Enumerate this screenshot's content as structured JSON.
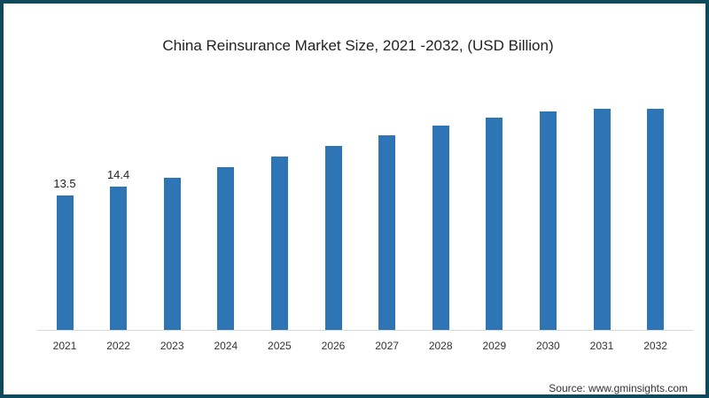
{
  "chart_data": {
    "type": "bar",
    "title": "China Reinsurance Market Size, 2021 -2032, (USD Billion)",
    "xlabel": "",
    "ylabel": "",
    "categories": [
      "2021",
      "2022",
      "2023",
      "2024",
      "2025",
      "2026",
      "2027",
      "2028",
      "2029",
      "2030",
      "2031",
      "2032"
    ],
    "values": [
      13.5,
      14.4,
      15.3,
      16.3,
      17.4,
      18.5,
      19.5,
      20.5,
      21.3,
      21.9,
      22.2,
      22.2
    ],
    "data_labels": [
      "13.5",
      "14.4",
      "",
      "",
      "",
      "",
      "",
      "",
      "",
      "",
      "",
      ""
    ],
    "ylim": [
      0,
      25
    ],
    "grid": false,
    "legend": null,
    "bar_color": "#2e75b6"
  },
  "source": "Source: www.gminsights.com",
  "colors": {
    "border": "#0f4a5c",
    "bar": "#2e75b6"
  }
}
